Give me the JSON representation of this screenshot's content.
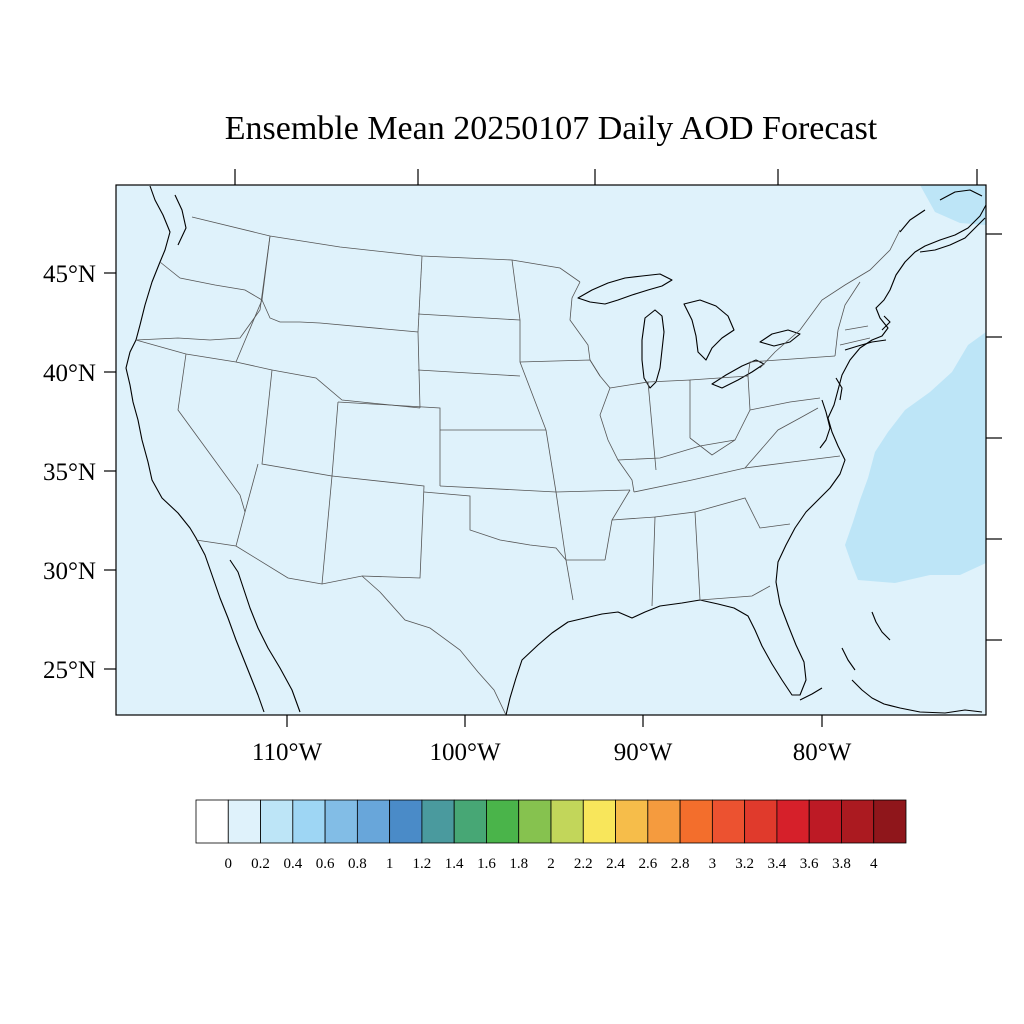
{
  "title": "Ensemble Mean 20250107 Daily AOD Forecast",
  "map": {
    "projection": "lambert-conformal",
    "region": "Continental United States",
    "background_aod_color": "#dff2fb",
    "ocean_plume_color": "#bde5f7",
    "coastline_color": "#000000",
    "state_border_color": "#555555"
  },
  "lat_labels": [
    "45°N",
    "40°N",
    "35°N",
    "30°N",
    "25°N"
  ],
  "lon_labels": [
    "110°W",
    "100°W",
    "90°W",
    "80°W"
  ],
  "colorbar": {
    "colors": [
      "#ffffff",
      "#dff2fb",
      "#bde5f7",
      "#9ed6f4",
      "#82bde6",
      "#68a6da",
      "#4a8bc8",
      "#4a9a9e",
      "#47a775",
      "#4ab44a",
      "#86c24f",
      "#c2d65a",
      "#f8e65b",
      "#f6bd4a",
      "#f59b3e",
      "#f36e2c",
      "#ec5230",
      "#e03a2c",
      "#d6202a",
      "#bd1a25",
      "#ab1a20",
      "#8f161b"
    ],
    "labels": [
      "0",
      "0.2",
      "0.4",
      "0.6",
      "0.8",
      "1",
      "1.2",
      "1.4",
      "1.6",
      "1.8",
      "2",
      "2.2",
      "2.4",
      "2.6",
      "2.8",
      "3",
      "3.2",
      "3.4",
      "3.6",
      "3.8",
      "4"
    ]
  }
}
